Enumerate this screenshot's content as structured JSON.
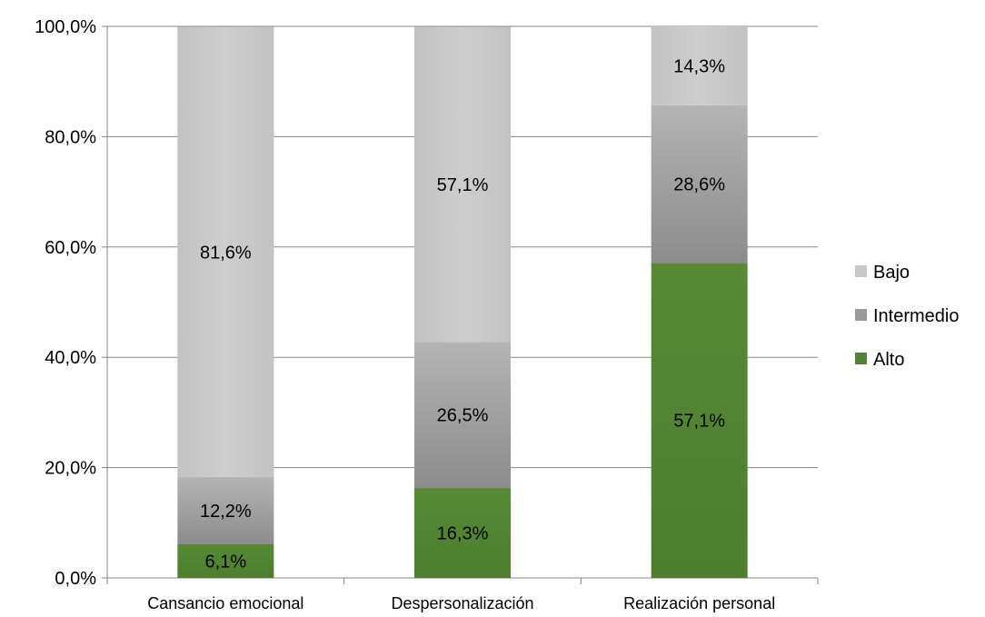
{
  "chart_data": {
    "type": "bar",
    "stacked": true,
    "categories": [
      "Cansancio emocional",
      "Despersonalización",
      "Realización personal"
    ],
    "series": [
      {
        "name": "Alto",
        "color": "#538135",
        "values": [
          6.1,
          16.3,
          57.1
        ],
        "labels": [
          "6,1%",
          "16,3%",
          "57,1%"
        ]
      },
      {
        "name": "Intermedio",
        "color": "#9a9a9a",
        "values": [
          12.2,
          26.5,
          28.6
        ],
        "labels": [
          "12,2%",
          "26,5%",
          "28,6%"
        ]
      },
      {
        "name": "Bajo",
        "color": "#c8c8c8",
        "values": [
          81.6,
          57.1,
          14.3
        ],
        "labels": [
          "81,6%",
          "57,1%",
          "14,3%"
        ]
      }
    ],
    "ylim": [
      0,
      100
    ],
    "yticks": [
      0,
      20,
      40,
      60,
      80,
      100
    ],
    "ytick_labels": [
      "0,0%",
      "20,0%",
      "40,0%",
      "60,0%",
      "80,0%",
      "100,0%"
    ],
    "legend_order": [
      "Bajo",
      "Intermedio",
      "Alto"
    ],
    "legend_placement": "right",
    "grid": true,
    "title": "",
    "xlabel": "",
    "ylabel": ""
  }
}
